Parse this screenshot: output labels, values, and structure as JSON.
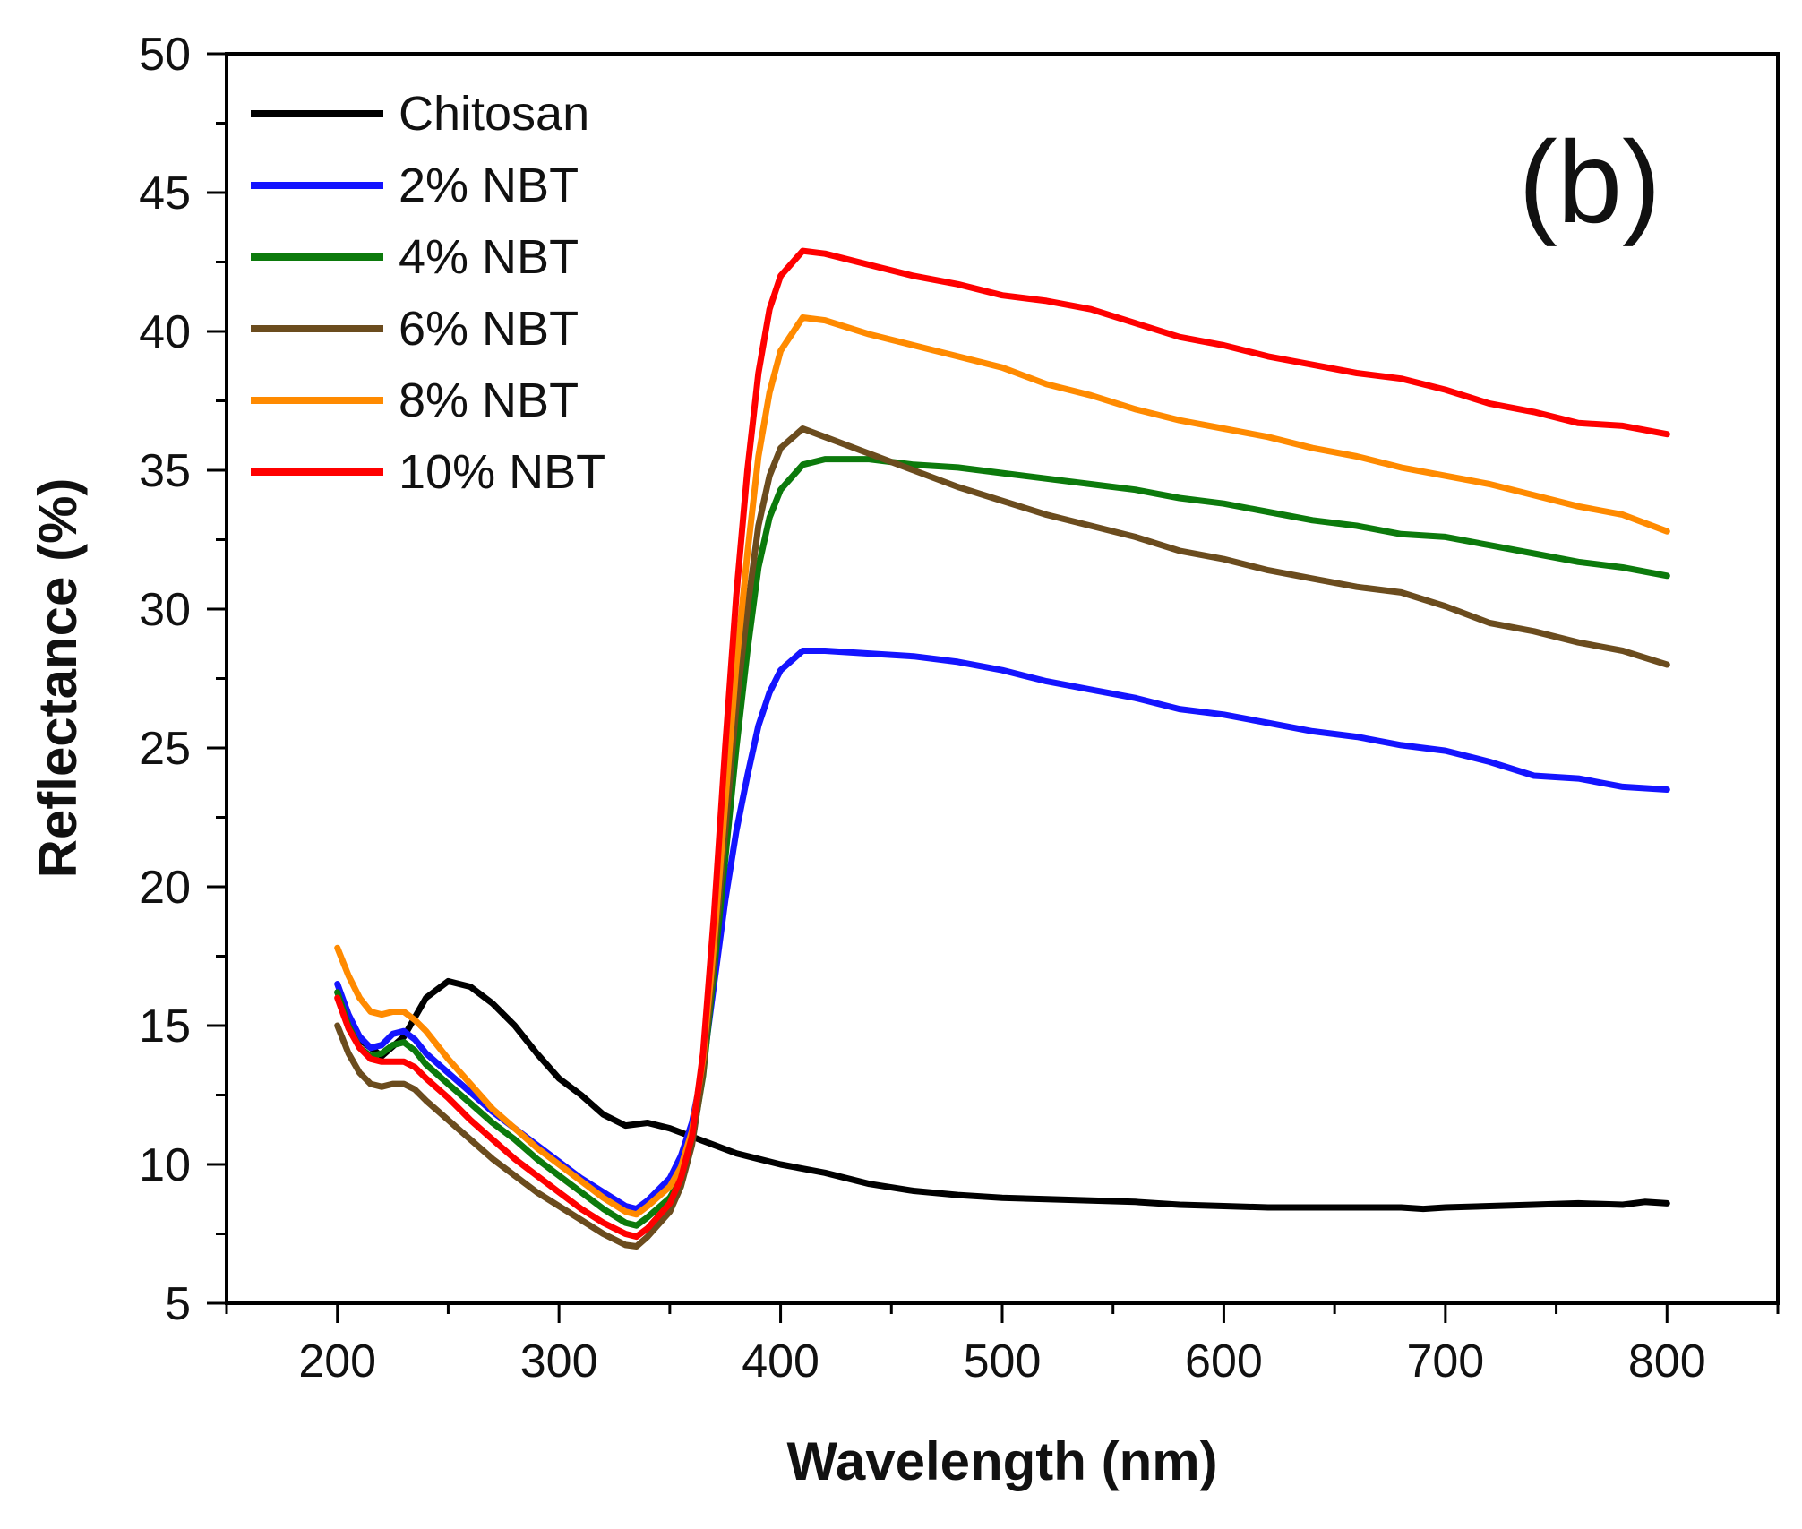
{
  "chart_data": {
    "type": "line",
    "title": "",
    "panel_label": "(b)",
    "xlabel": "Wavelength (nm)",
    "ylabel": "Reflectance (%)",
    "xlim": [
      150,
      850
    ],
    "ylim": [
      5,
      50
    ],
    "xticks": [
      "200",
      "300",
      "400",
      "500",
      "600",
      "700",
      "800"
    ],
    "yticks": [
      "5",
      "10",
      "15",
      "20",
      "25",
      "30",
      "35",
      "40",
      "45",
      "50"
    ],
    "legend_position": "top-left",
    "grid": false,
    "series": [
      {
        "name": "Chitosan",
        "color": "#000000",
        "points": [
          [
            200,
            16.2
          ],
          [
            210,
            14.5
          ],
          [
            220,
            13.9
          ],
          [
            230,
            14.6
          ],
          [
            240,
            16.0
          ],
          [
            250,
            16.6
          ],
          [
            260,
            16.4
          ],
          [
            270,
            15.8
          ],
          [
            280,
            15.0
          ],
          [
            290,
            14.0
          ],
          [
            300,
            13.1
          ],
          [
            310,
            12.5
          ],
          [
            320,
            11.8
          ],
          [
            330,
            11.4
          ],
          [
            340,
            11.5
          ],
          [
            350,
            11.3
          ],
          [
            360,
            11.0
          ],
          [
            370,
            10.7
          ],
          [
            380,
            10.4
          ],
          [
            390,
            10.2
          ],
          [
            400,
            10.0
          ],
          [
            420,
            9.7
          ],
          [
            440,
            9.3
          ],
          [
            460,
            9.05
          ],
          [
            480,
            8.9
          ],
          [
            500,
            8.8
          ],
          [
            520,
            8.75
          ],
          [
            540,
            8.7
          ],
          [
            560,
            8.65
          ],
          [
            580,
            8.55
          ],
          [
            600,
            8.5
          ],
          [
            620,
            8.45
          ],
          [
            640,
            8.45
          ],
          [
            660,
            8.45
          ],
          [
            680,
            8.45
          ],
          [
            690,
            8.4
          ],
          [
            700,
            8.45
          ],
          [
            720,
            8.5
          ],
          [
            740,
            8.55
          ],
          [
            760,
            8.6
          ],
          [
            780,
            8.55
          ],
          [
            790,
            8.65
          ],
          [
            800,
            8.6
          ]
        ]
      },
      {
        "name": "2% NBT",
        "color": "#1414ff",
        "points": [
          [
            200,
            16.5
          ],
          [
            205,
            15.4
          ],
          [
            210,
            14.6
          ],
          [
            215,
            14.2
          ],
          [
            220,
            14.3
          ],
          [
            225,
            14.7
          ],
          [
            230,
            14.8
          ],
          [
            235,
            14.5
          ],
          [
            240,
            14.0
          ],
          [
            250,
            13.3
          ],
          [
            260,
            12.6
          ],
          [
            270,
            11.9
          ],
          [
            280,
            11.3
          ],
          [
            290,
            10.7
          ],
          [
            300,
            10.1
          ],
          [
            310,
            9.5
          ],
          [
            320,
            9.0
          ],
          [
            330,
            8.5
          ],
          [
            335,
            8.4
          ],
          [
            340,
            8.7
          ],
          [
            350,
            9.5
          ],
          [
            355,
            10.3
          ],
          [
            360,
            11.5
          ],
          [
            365,
            13.5
          ],
          [
            370,
            16.5
          ],
          [
            375,
            19.5
          ],
          [
            380,
            22.0
          ],
          [
            385,
            24.0
          ],
          [
            390,
            25.8
          ],
          [
            395,
            27.0
          ],
          [
            400,
            27.8
          ],
          [
            410,
            28.5
          ],
          [
            420,
            28.5
          ],
          [
            440,
            28.4
          ],
          [
            460,
            28.3
          ],
          [
            480,
            28.1
          ],
          [
            500,
            27.8
          ],
          [
            520,
            27.4
          ],
          [
            540,
            27.1
          ],
          [
            560,
            26.8
          ],
          [
            580,
            26.4
          ],
          [
            600,
            26.2
          ],
          [
            620,
            25.9
          ],
          [
            640,
            25.6
          ],
          [
            660,
            25.4
          ],
          [
            680,
            25.1
          ],
          [
            700,
            24.9
          ],
          [
            720,
            24.5
          ],
          [
            740,
            24.0
          ],
          [
            760,
            23.9
          ],
          [
            780,
            23.6
          ],
          [
            800,
            23.5
          ]
        ]
      },
      {
        "name": "4% NBT",
        "color": "#0c7a0c",
        "points": [
          [
            200,
            16.2
          ],
          [
            205,
            15.0
          ],
          [
            210,
            14.2
          ],
          [
            215,
            13.9
          ],
          [
            220,
            14.0
          ],
          [
            225,
            14.3
          ],
          [
            230,
            14.4
          ],
          [
            235,
            14.1
          ],
          [
            240,
            13.6
          ],
          [
            250,
            12.9
          ],
          [
            260,
            12.2
          ],
          [
            270,
            11.5
          ],
          [
            280,
            10.9
          ],
          [
            290,
            10.2
          ],
          [
            300,
            9.6
          ],
          [
            310,
            9.0
          ],
          [
            320,
            8.4
          ],
          [
            330,
            7.9
          ],
          [
            335,
            7.8
          ],
          [
            340,
            8.1
          ],
          [
            350,
            8.8
          ],
          [
            355,
            9.5
          ],
          [
            360,
            10.8
          ],
          [
            365,
            13.2
          ],
          [
            370,
            17.0
          ],
          [
            375,
            21.0
          ],
          [
            380,
            25.0
          ],
          [
            385,
            28.5
          ],
          [
            390,
            31.5
          ],
          [
            395,
            33.3
          ],
          [
            400,
            34.3
          ],
          [
            410,
            35.2
          ],
          [
            420,
            35.4
          ],
          [
            440,
            35.4
          ],
          [
            460,
            35.2
          ],
          [
            480,
            35.1
          ],
          [
            500,
            34.9
          ],
          [
            520,
            34.7
          ],
          [
            540,
            34.5
          ],
          [
            560,
            34.3
          ],
          [
            580,
            34.0
          ],
          [
            600,
            33.8
          ],
          [
            620,
            33.5
          ],
          [
            640,
            33.2
          ],
          [
            660,
            33.0
          ],
          [
            680,
            32.7
          ],
          [
            700,
            32.6
          ],
          [
            720,
            32.3
          ],
          [
            740,
            32.0
          ],
          [
            760,
            31.7
          ],
          [
            780,
            31.5
          ],
          [
            800,
            31.2
          ]
        ]
      },
      {
        "name": "6% NBT",
        "color": "#6b4c1e",
        "points": [
          [
            200,
            15.0
          ],
          [
            205,
            14.0
          ],
          [
            210,
            13.3
          ],
          [
            215,
            12.9
          ],
          [
            220,
            12.8
          ],
          [
            225,
            12.9
          ],
          [
            230,
            12.9
          ],
          [
            235,
            12.7
          ],
          [
            240,
            12.3
          ],
          [
            250,
            11.6
          ],
          [
            260,
            10.9
          ],
          [
            270,
            10.2
          ],
          [
            280,
            9.6
          ],
          [
            290,
            9.0
          ],
          [
            300,
            8.5
          ],
          [
            310,
            8.0
          ],
          [
            320,
            7.5
          ],
          [
            330,
            7.1
          ],
          [
            335,
            7.05
          ],
          [
            340,
            7.4
          ],
          [
            350,
            8.3
          ],
          [
            355,
            9.2
          ],
          [
            360,
            10.7
          ],
          [
            365,
            13.3
          ],
          [
            370,
            17.5
          ],
          [
            375,
            22.0
          ],
          [
            380,
            26.5
          ],
          [
            385,
            30.0
          ],
          [
            390,
            33.0
          ],
          [
            395,
            34.8
          ],
          [
            400,
            35.8
          ],
          [
            410,
            36.5
          ],
          [
            420,
            36.2
          ],
          [
            440,
            35.6
          ],
          [
            460,
            35.0
          ],
          [
            480,
            34.4
          ],
          [
            500,
            33.9
          ],
          [
            520,
            33.4
          ],
          [
            540,
            33.0
          ],
          [
            560,
            32.6
          ],
          [
            580,
            32.1
          ],
          [
            600,
            31.8
          ],
          [
            620,
            31.4
          ],
          [
            640,
            31.1
          ],
          [
            660,
            30.8
          ],
          [
            680,
            30.6
          ],
          [
            700,
            30.1
          ],
          [
            720,
            29.5
          ],
          [
            740,
            29.2
          ],
          [
            760,
            28.8
          ],
          [
            780,
            28.5
          ],
          [
            800,
            28.0
          ]
        ]
      },
      {
        "name": "8% NBT",
        "color": "#ff8a00",
        "points": [
          [
            200,
            17.8
          ],
          [
            205,
            16.8
          ],
          [
            210,
            16.0
          ],
          [
            215,
            15.5
          ],
          [
            220,
            15.4
          ],
          [
            225,
            15.5
          ],
          [
            230,
            15.5
          ],
          [
            235,
            15.2
          ],
          [
            240,
            14.8
          ],
          [
            250,
            13.8
          ],
          [
            260,
            12.9
          ],
          [
            270,
            12.0
          ],
          [
            280,
            11.3
          ],
          [
            290,
            10.6
          ],
          [
            300,
            10.0
          ],
          [
            310,
            9.4
          ],
          [
            320,
            8.8
          ],
          [
            330,
            8.3
          ],
          [
            335,
            8.2
          ],
          [
            340,
            8.5
          ],
          [
            350,
            9.2
          ],
          [
            355,
            9.9
          ],
          [
            360,
            11.2
          ],
          [
            365,
            13.8
          ],
          [
            370,
            18.0
          ],
          [
            375,
            23.0
          ],
          [
            380,
            28.0
          ],
          [
            385,
            32.0
          ],
          [
            390,
            35.5
          ],
          [
            395,
            37.8
          ],
          [
            400,
            39.3
          ],
          [
            410,
            40.5
          ],
          [
            420,
            40.4
          ],
          [
            440,
            39.9
          ],
          [
            460,
            39.5
          ],
          [
            480,
            39.1
          ],
          [
            500,
            38.7
          ],
          [
            520,
            38.1
          ],
          [
            540,
            37.7
          ],
          [
            560,
            37.2
          ],
          [
            580,
            36.8
          ],
          [
            600,
            36.5
          ],
          [
            620,
            36.2
          ],
          [
            640,
            35.8
          ],
          [
            660,
            35.5
          ],
          [
            680,
            35.1
          ],
          [
            700,
            34.8
          ],
          [
            720,
            34.5
          ],
          [
            740,
            34.1
          ],
          [
            760,
            33.7
          ],
          [
            780,
            33.4
          ],
          [
            800,
            32.8
          ]
        ]
      },
      {
        "name": "10% NBT",
        "color": "#ff0000",
        "points": [
          [
            200,
            16.0
          ],
          [
            205,
            14.9
          ],
          [
            210,
            14.2
          ],
          [
            215,
            13.8
          ],
          [
            220,
            13.7
          ],
          [
            225,
            13.7
          ],
          [
            230,
            13.7
          ],
          [
            235,
            13.5
          ],
          [
            240,
            13.1
          ],
          [
            250,
            12.4
          ],
          [
            260,
            11.6
          ],
          [
            270,
            10.9
          ],
          [
            280,
            10.2
          ],
          [
            290,
            9.6
          ],
          [
            300,
            9.0
          ],
          [
            310,
            8.4
          ],
          [
            320,
            7.9
          ],
          [
            330,
            7.5
          ],
          [
            335,
            7.4
          ],
          [
            340,
            7.7
          ],
          [
            350,
            8.6
          ],
          [
            355,
            9.5
          ],
          [
            360,
            11.0
          ],
          [
            365,
            14.0
          ],
          [
            370,
            19.0
          ],
          [
            375,
            25.0
          ],
          [
            380,
            30.5
          ],
          [
            385,
            35.0
          ],
          [
            390,
            38.5
          ],
          [
            395,
            40.8
          ],
          [
            400,
            42.0
          ],
          [
            410,
            42.9
          ],
          [
            420,
            42.8
          ],
          [
            440,
            42.4
          ],
          [
            460,
            42.0
          ],
          [
            480,
            41.7
          ],
          [
            500,
            41.3
          ],
          [
            520,
            41.1
          ],
          [
            540,
            40.8
          ],
          [
            560,
            40.3
          ],
          [
            580,
            39.8
          ],
          [
            600,
            39.5
          ],
          [
            620,
            39.1
          ],
          [
            640,
            38.8
          ],
          [
            660,
            38.5
          ],
          [
            680,
            38.3
          ],
          [
            700,
            37.9
          ],
          [
            720,
            37.4
          ],
          [
            740,
            37.1
          ],
          [
            760,
            36.7
          ],
          [
            780,
            36.6
          ],
          [
            800,
            36.3
          ]
        ]
      }
    ]
  }
}
